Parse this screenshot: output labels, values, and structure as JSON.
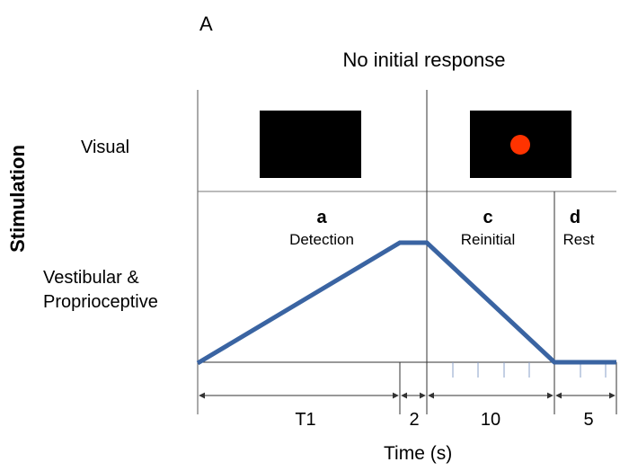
{
  "panel_letter": "A",
  "title": "No initial response",
  "y_axis_label": "Stimulation",
  "x_axis_label": "Time (s)",
  "rows": {
    "visual": "Visual",
    "vestibular": [
      "Vestibular &",
      "Proprioceptive"
    ]
  },
  "phases": [
    {
      "letter": "a",
      "name": "Detection",
      "duration": "T1"
    },
    {
      "letter": "",
      "name": "",
      "duration": "2"
    },
    {
      "letter": "c",
      "name": "Reinitial",
      "duration": "10"
    },
    {
      "letter": "d",
      "name": "Rest",
      "duration": "5"
    }
  ],
  "screens": [
    {
      "id": "blank-screen",
      "has_target": false
    },
    {
      "id": "target-screen",
      "has_target": true
    }
  ],
  "colors": {
    "trace": "#3a64a2",
    "screen": "#000000",
    "target_dot": "#ff3300",
    "line": "#555555"
  }
}
